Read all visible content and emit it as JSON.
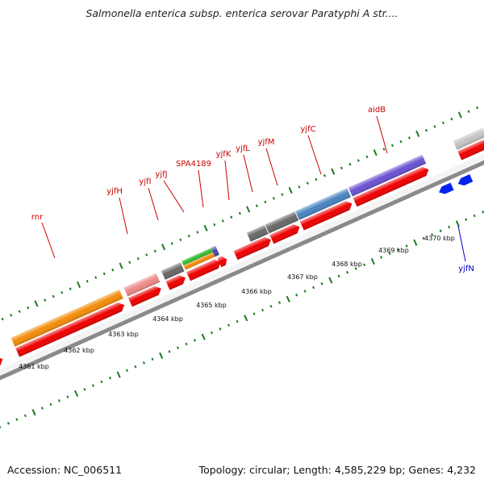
{
  "title": "Salmonella enterica subsp. enterica serovar Paratyphi A str....",
  "footer": {
    "accession": "Accession: NC_006511",
    "summary": "Topology: circular; Length: 4,585,229 bp; Genes: 4,232"
  },
  "kbp_ticks": [
    {
      "label": "4361 kbp"
    },
    {
      "label": "4362 kbp"
    },
    {
      "label": "4363 kbp"
    },
    {
      "label": "4364 kbp"
    },
    {
      "label": "4365 kbp"
    },
    {
      "label": "4366 kbp"
    },
    {
      "label": "4367 kbp"
    },
    {
      "label": "4368 kbp"
    },
    {
      "label": "4369 kbp"
    },
    {
      "label": "4370 kbp"
    }
  ],
  "gene_labels": [
    {
      "name": "rnr",
      "strand": "plus"
    },
    {
      "name": "yjfH",
      "strand": "plus"
    },
    {
      "name": "yjfI",
      "strand": "plus"
    },
    {
      "name": "yjfJ",
      "strand": "plus"
    },
    {
      "name": "SPA4189",
      "strand": "plus"
    },
    {
      "name": "yjfK",
      "strand": "plus"
    },
    {
      "name": "yjfL",
      "strand": "plus"
    },
    {
      "name": "yjfM",
      "strand": "plus"
    },
    {
      "name": "yjfC",
      "strand": "plus"
    },
    {
      "name": "aidB",
      "strand": "plus"
    },
    {
      "name": "yjfN",
      "strand": "minus"
    }
  ],
  "colors": {
    "cds": "#ee0000",
    "minus_cds": "#0022ee",
    "backbone": "#8a8a8a",
    "tick": "#1e7a1e",
    "label": "#cc0000",
    "minus_label": "#0000cc"
  }
}
